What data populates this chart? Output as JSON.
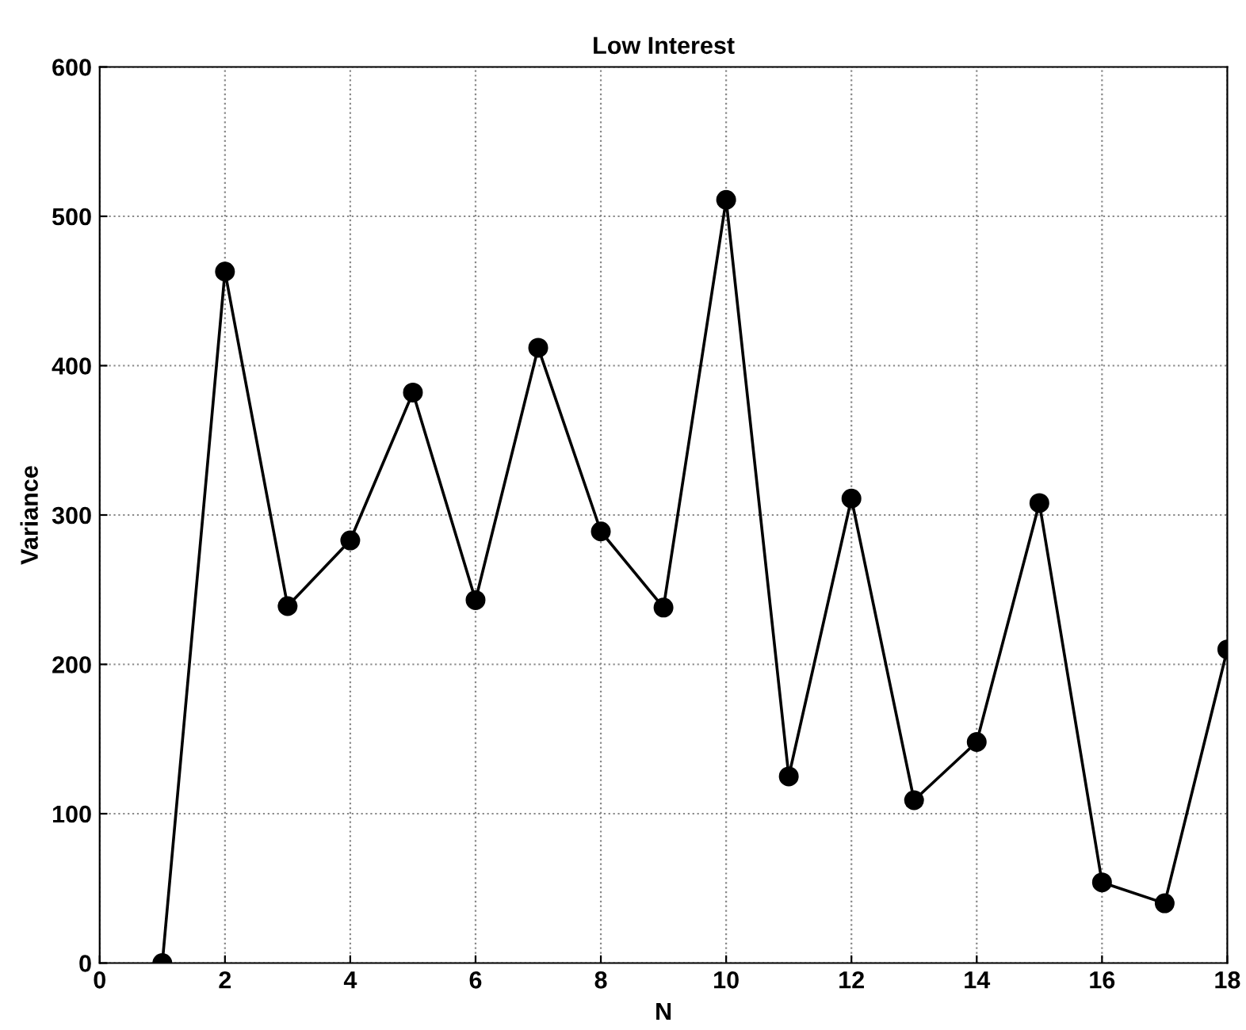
{
  "chart_data": {
    "type": "line",
    "title": "Low Interest",
    "xlabel": "N",
    "ylabel": "Variance",
    "x": [
      1,
      2,
      3,
      4,
      5,
      6,
      7,
      8,
      9,
      10,
      11,
      12,
      13,
      14,
      15,
      16,
      17,
      18
    ],
    "series": [
      {
        "color": "#000000",
        "values": [
          0,
          463,
          239,
          283,
          382,
          243,
          412,
          289,
          238,
          511,
          125,
          311,
          109,
          148,
          308,
          54,
          40,
          210
        ]
      }
    ],
    "xlim": [
      0,
      18
    ],
    "xticks": [
      0,
      2,
      4,
      6,
      8,
      10,
      12,
      14,
      16,
      18
    ],
    "ylim": [
      0,
      600
    ],
    "yticks": [
      0,
      100,
      200,
      300,
      400,
      500,
      600
    ],
    "grid": true,
    "marker": "circle",
    "line_style": "solid"
  }
}
